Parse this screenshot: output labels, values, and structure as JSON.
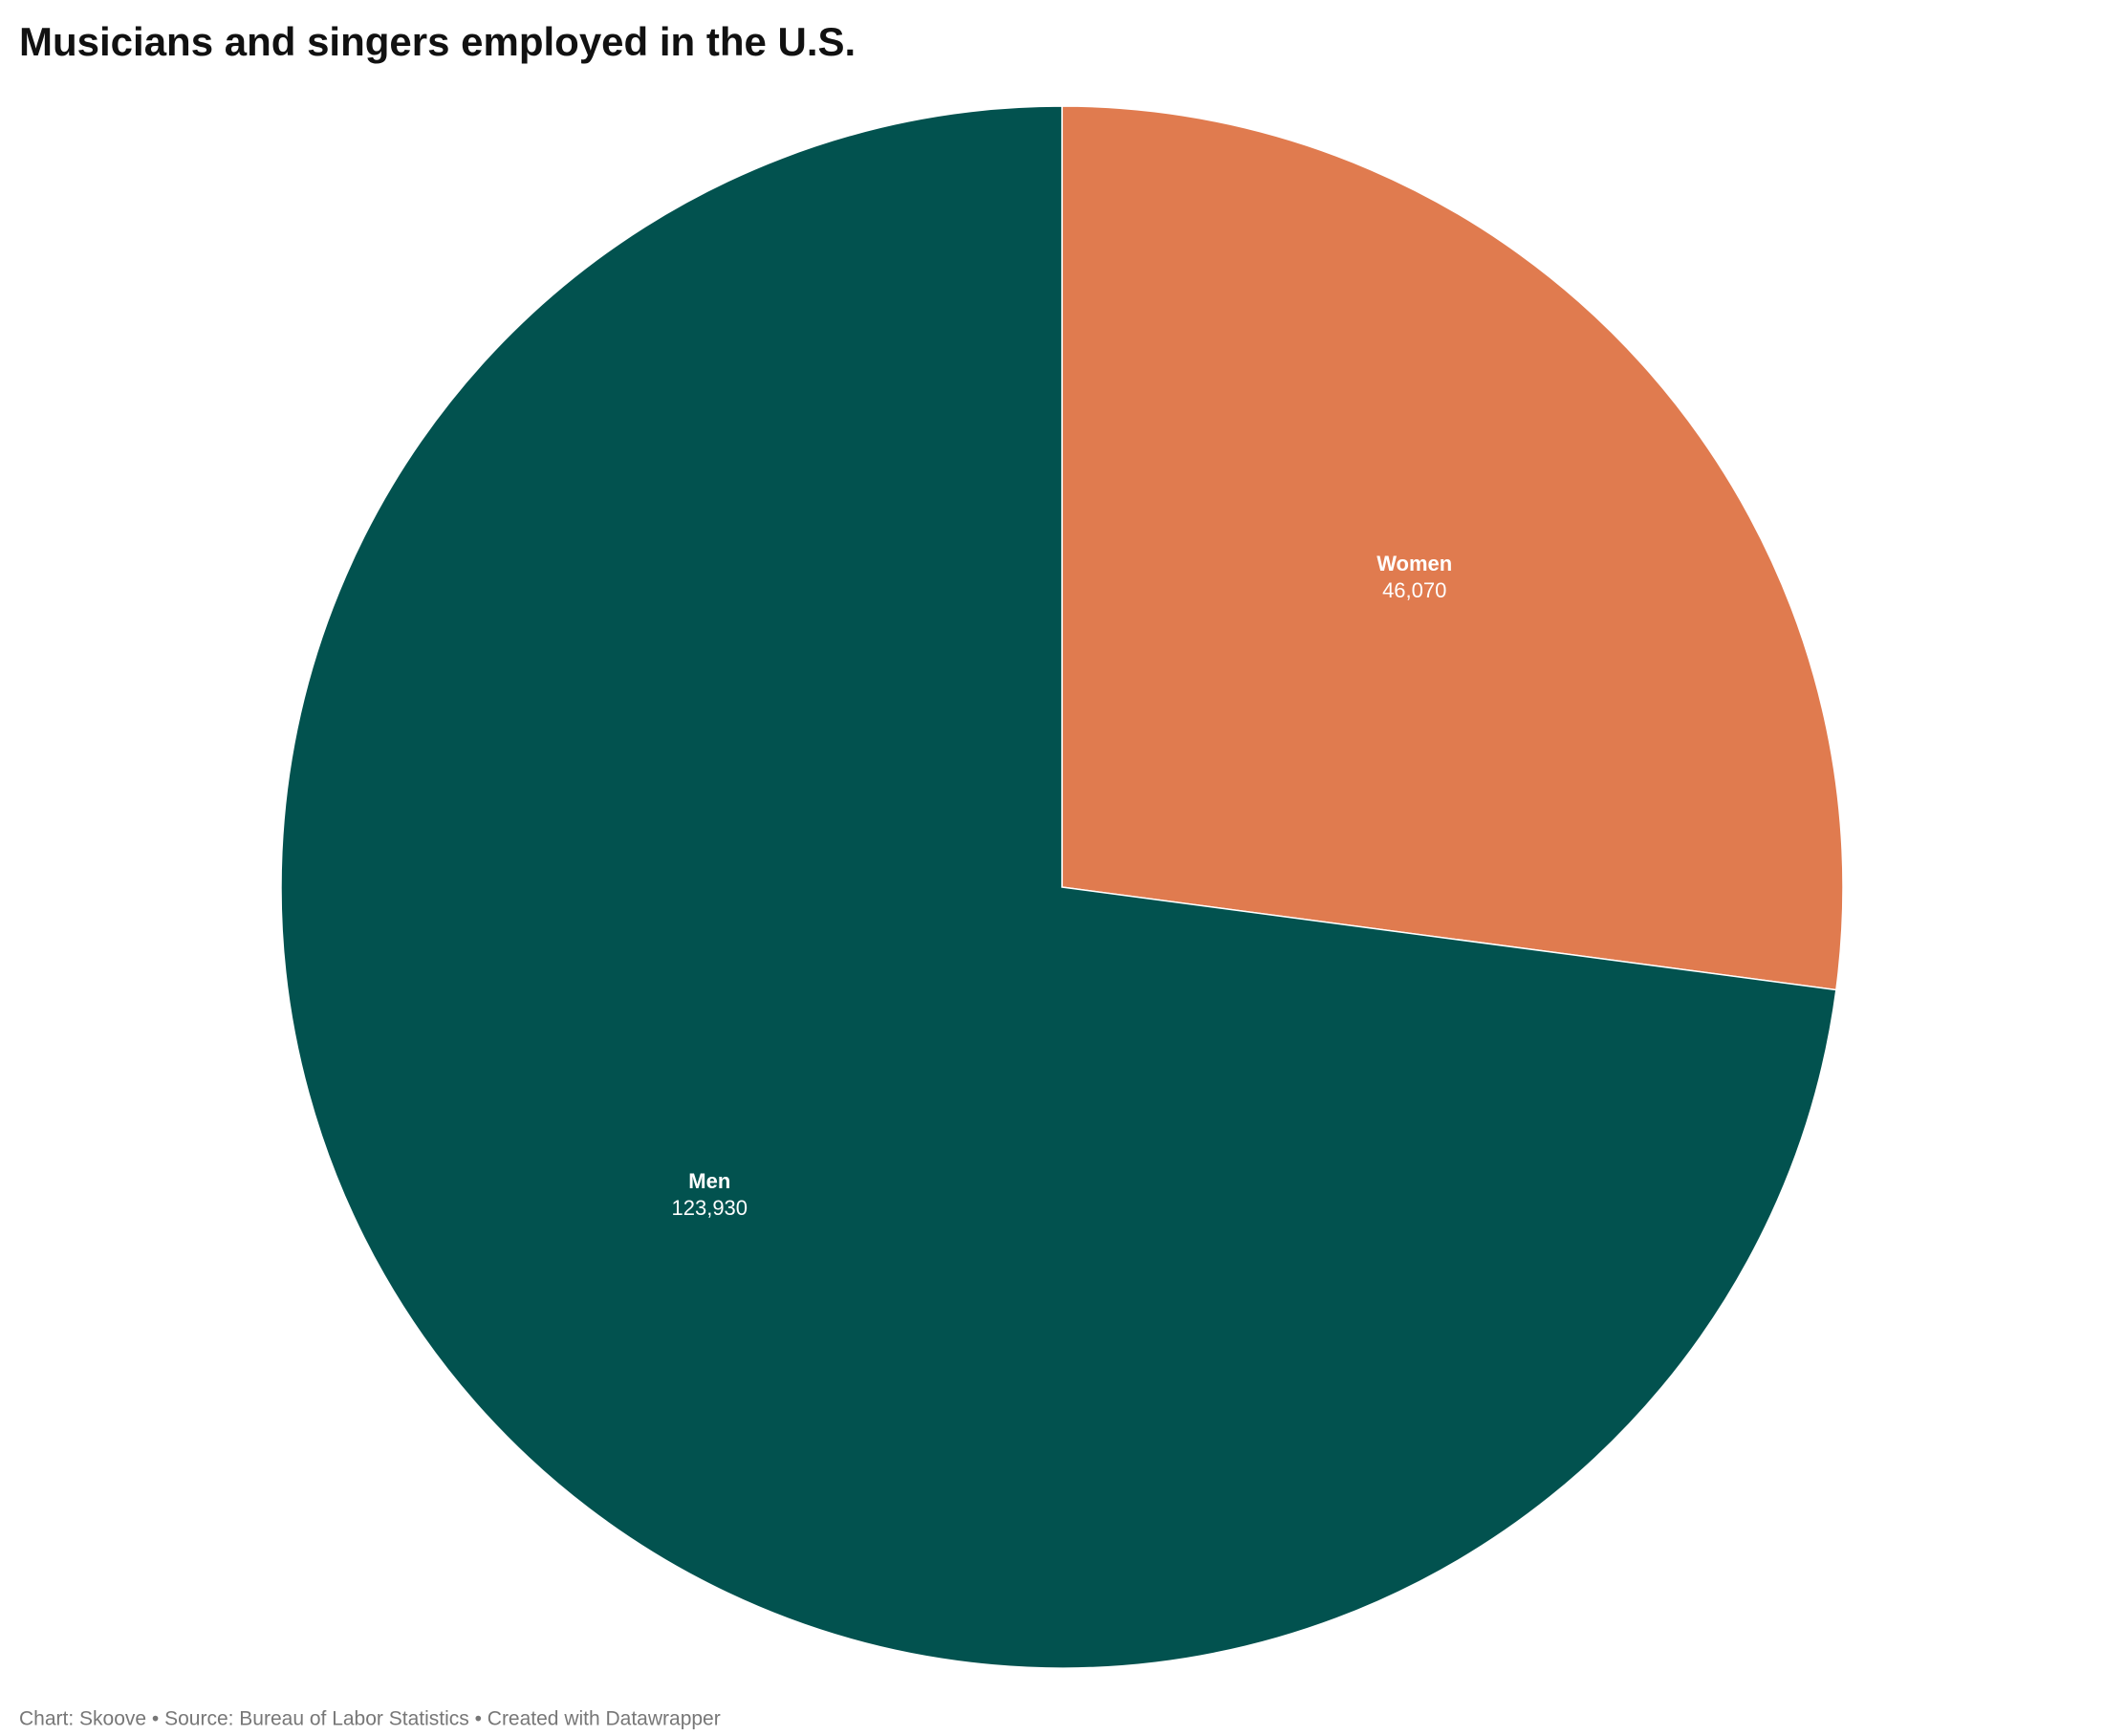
{
  "chart_data": {
    "type": "pie",
    "title": "Musicians and singers employed in the U.S.",
    "categories": [
      "Women",
      "Men"
    ],
    "values": [
      46070,
      123930
    ],
    "value_labels": [
      "46,070",
      "123,930"
    ],
    "colors": [
      "#e07b4f",
      "#02524f"
    ],
    "note": "Chart: Skoove • Source: Bureau of Labor Statistics • Created with Datawrapper"
  }
}
